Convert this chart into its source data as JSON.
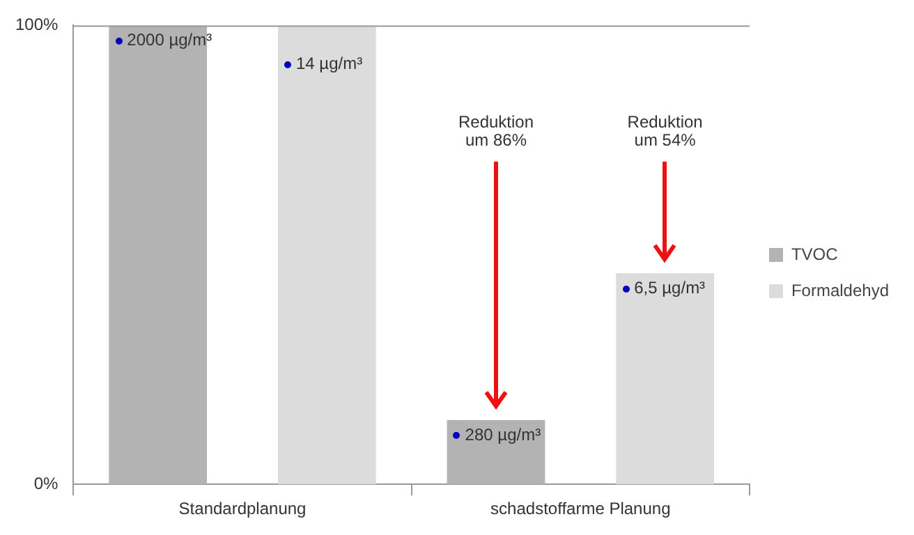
{
  "chart_data": {
    "type": "bar",
    "categories": [
      "Standardplanung",
      "schadstoffarme Planung"
    ],
    "series": [
      {
        "name": "TVOC",
        "color": "#b3b3b3",
        "values": [
          100,
          14
        ]
      },
      {
        "name": "Formaldehyd",
        "color": "#dcdcdc",
        "values": [
          100,
          46
        ]
      }
    ],
    "ylim": [
      0,
      100
    ],
    "yticks": [
      {
        "value": 0,
        "label": "0%"
      },
      {
        "value": 100,
        "label": "100%"
      }
    ],
    "annotations": [
      "2000 µg/m³",
      "14 µg/m³",
      "280 µg/m³",
      "6,5 µg/m³",
      "Reduktion\num 86%",
      "Reduktion\num 54%"
    ],
    "legend": "right"
  }
}
